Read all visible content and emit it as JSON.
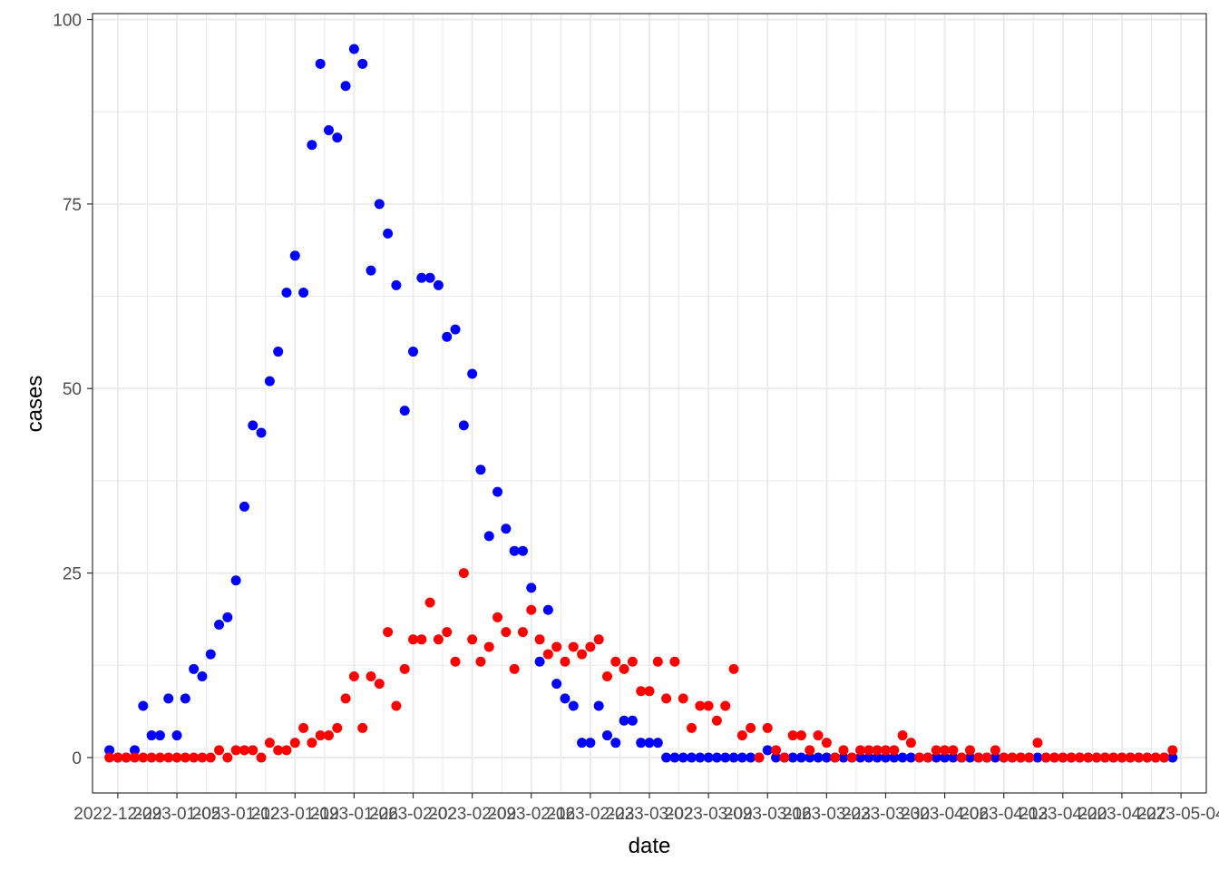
{
  "chart_data": {
    "type": "scatter",
    "title": "",
    "xlabel": "date",
    "ylabel": "cases",
    "x_range": [
      "2022-12-26",
      "2023-05-07"
    ],
    "ylim": [
      -4.8,
      100.8
    ],
    "y_ticks": [
      0,
      25,
      50,
      75,
      100
    ],
    "x_ticks": [
      "2022-12-29",
      "2023-01-05",
      "2023-01-12",
      "2023-01-19",
      "2023-01-26",
      "2023-02-02",
      "2023-02-09",
      "2023-02-16",
      "2023-02-23",
      "2023-03-02",
      "2023-03-09",
      "2023-03-16",
      "2023-03-23",
      "2023-03-30",
      "2023-04-06",
      "2023-04-13",
      "2023-04-20",
      "2023-04-27",
      "2023-05-04"
    ],
    "x_tick_labels": [
      "2022-12-29",
      "2023-01-05",
      "2023-01-12",
      "2023-01-19",
      "2023-01-26",
      "2023-02-02",
      "2023-02-09",
      "2023-02-16",
      "2023-02-23",
      "2023-03-02",
      "2023-03-09",
      "2023-03-16",
      "2023-03-23",
      "2023-03-30",
      "2023-04-06",
      "2023-04-13",
      "2023-04-20",
      "2023-04-27",
      "2023-05-04"
    ],
    "grid": true,
    "legend": "none",
    "start_date": "2022-12-28",
    "series": [
      {
        "color": "#0000ff",
        "values": [
          1,
          0,
          0,
          1,
          7,
          3,
          3,
          8,
          3,
          8,
          12,
          11,
          14,
          18,
          19,
          24,
          34,
          45,
          44,
          51,
          55,
          63,
          68,
          63,
          83,
          94,
          85,
          84,
          91,
          96,
          94,
          66,
          75,
          71,
          64,
          47,
          55,
          65,
          65,
          64,
          57,
          58,
          45,
          52,
          39,
          30,
          36,
          31,
          28,
          28,
          23,
          13,
          20,
          10,
          8,
          7,
          2,
          2,
          7,
          3,
          2,
          5,
          5,
          2,
          2,
          2,
          0,
          0,
          0,
          0,
          0,
          0,
          0,
          0,
          0,
          0,
          0,
          0,
          1,
          0,
          0,
          0,
          0,
          0,
          0,
          0,
          0,
          0,
          0,
          0,
          0,
          0,
          0,
          0,
          0,
          0,
          0,
          0,
          0,
          0,
          0,
          0,
          0,
          0,
          0,
          0,
          0,
          0,
          0,
          0,
          0,
          0,
          0,
          0,
          0,
          0,
          0,
          0,
          0,
          0,
          0,
          0,
          0,
          0,
          0,
          0,
          0
        ]
      },
      {
        "color": "#ff0000",
        "values": [
          0,
          0,
          0,
          0,
          0,
          0,
          0,
          0,
          0,
          0,
          0,
          0,
          0,
          1,
          0,
          1,
          1,
          1,
          0,
          2,
          1,
          1,
          2,
          4,
          2,
          3,
          3,
          4,
          8,
          11,
          4,
          11,
          10,
          17,
          7,
          12,
          16,
          16,
          21,
          16,
          17,
          13,
          25,
          16,
          13,
          15,
          19,
          17,
          12,
          17,
          20,
          16,
          14,
          15,
          13,
          15,
          14,
          15,
          16,
          11,
          13,
          12,
          13,
          9,
          9,
          13,
          8,
          13,
          8,
          4,
          7,
          7,
          5,
          7,
          12,
          3,
          4,
          0,
          4,
          1,
          0,
          3,
          3,
          1,
          3,
          2,
          0,
          1,
          0,
          1,
          1,
          1,
          1,
          1,
          3,
          2,
          0,
          0,
          1,
          1,
          1,
          0,
          1,
          0,
          0,
          1,
          0,
          0,
          0,
          0,
          2,
          0,
          0,
          0,
          0,
          0,
          0,
          0,
          0,
          0,
          0,
          0,
          0,
          0,
          0,
          0,
          1
        ]
      }
    ]
  }
}
